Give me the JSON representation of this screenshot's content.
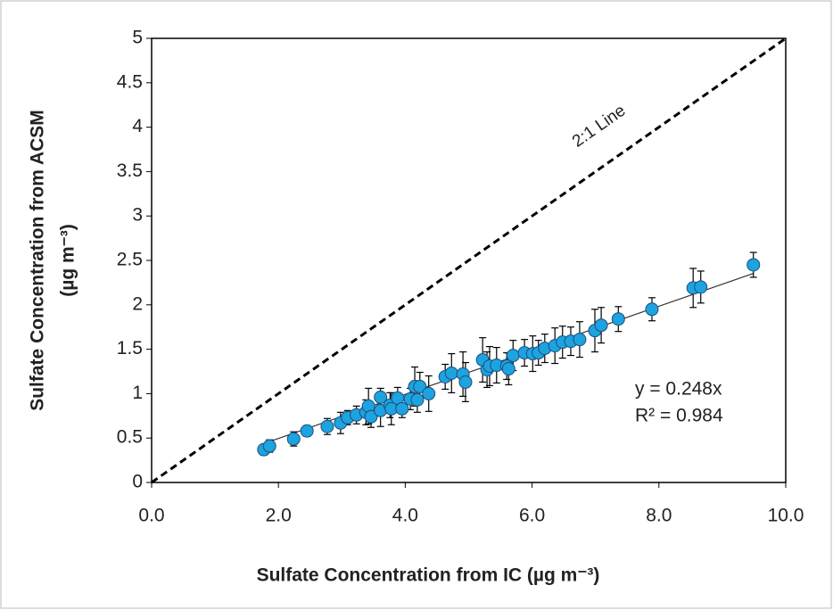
{
  "chart_data": {
    "type": "scatter",
    "xlabel": "Sulfate Concentration from IC (µg m⁻³)",
    "ylabel": [
      "Sulfate Concentration from ACSM",
      "(µg m⁻³)"
    ],
    "xlim": [
      0,
      10
    ],
    "xticks": [
      {
        "value": 0,
        "label": "0.0"
      },
      {
        "value": 2,
        "label": "2.0"
      },
      {
        "value": 4,
        "label": "4.0"
      },
      {
        "value": 6,
        "label": "6.0"
      },
      {
        "value": 8,
        "label": "8.0"
      },
      {
        "value": 10,
        "label": "10.0"
      }
    ],
    "ylim": [
      0,
      5
    ],
    "yticks": [
      0,
      0.5,
      1,
      1.5,
      2,
      2.5,
      3,
      3.5,
      4,
      4.5,
      5
    ],
    "color": "#1ca3e0",
    "x": [
      1.77,
      1.86,
      2.24,
      2.45,
      2.77,
      2.98,
      3.09,
      3.23,
      3.38,
      3.42,
      3.46,
      3.61,
      3.61,
      3.76,
      3.78,
      3.88,
      3.95,
      4.08,
      4.15,
      4.19,
      4.23,
      4.37,
      4.63,
      4.73,
      4.91,
      4.95,
      5.22,
      5.29,
      5.33,
      5.44,
      5.6,
      5.63,
      5.7,
      5.88,
      6.01,
      6.1,
      6.2,
      6.36,
      6.48,
      6.61,
      6.75,
      6.99,
      7.09,
      7.36,
      7.89,
      8.54,
      8.66,
      9.49
    ],
    "values": [
      0.37,
      0.41,
      0.49,
      0.58,
      0.63,
      0.67,
      0.73,
      0.76,
      0.79,
      0.86,
      0.74,
      0.96,
      0.81,
      0.87,
      0.83,
      0.95,
      0.83,
      0.94,
      1.08,
      0.93,
      1.08,
      1.0,
      1.19,
      1.23,
      1.22,
      1.13,
      1.38,
      1.27,
      1.31,
      1.32,
      1.31,
      1.28,
      1.43,
      1.46,
      1.45,
      1.46,
      1.51,
      1.54,
      1.58,
      1.59,
      1.61,
      1.71,
      1.77,
      1.84,
      1.95,
      2.19,
      2.2,
      2.45
    ],
    "errors": [
      0.06,
      0.07,
      0.08,
      0.06,
      0.09,
      0.12,
      0.08,
      0.1,
      0.14,
      0.2,
      0.12,
      0.1,
      0.18,
      0.14,
      0.18,
      0.12,
      0.1,
      0.12,
      0.22,
      0.14,
      0.16,
      0.2,
      0.14,
      0.22,
      0.25,
      0.22,
      0.25,
      0.2,
      0.22,
      0.2,
      0.15,
      0.18,
      0.17,
      0.15,
      0.2,
      0.14,
      0.16,
      0.2,
      0.18,
      0.16,
      0.2,
      0.24,
      0.2,
      0.14,
      0.13,
      0.22,
      0.18,
      0.14
    ],
    "trendline": {
      "slope": 0.248,
      "label": "y = 0.248x"
    },
    "reference_line": {
      "slope": 0.5,
      "label": "2:1 Line"
    },
    "annotations": [
      "R² = 0.984"
    ]
  }
}
